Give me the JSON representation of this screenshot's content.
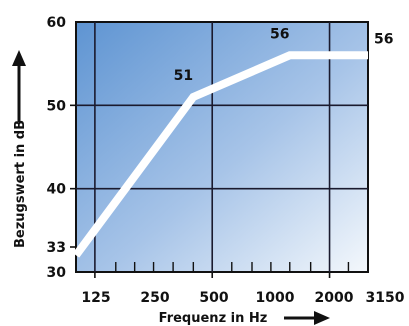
{
  "chart_data": {
    "type": "line",
    "title": "",
    "xlabel": "Frequenz in Hz",
    "ylabel": "Bezugswert in dB",
    "x_scale": "log",
    "ylim": [
      30,
      60
    ],
    "xlim": [
      100,
      3150
    ],
    "y_ticks": [
      30,
      33,
      40,
      50,
      60
    ],
    "x_ticks": [
      125,
      250,
      500,
      1000,
      2000,
      3150
    ],
    "grid": true,
    "series": [
      {
        "name": "",
        "x": [
          100,
          400,
          1250,
          3150
        ],
        "y": [
          32,
          51,
          56,
          56
        ]
      }
    ],
    "point_labels": [
      {
        "x": 400,
        "y": 51,
        "text": "51"
      },
      {
        "x": 1250,
        "y": 56,
        "text": "56"
      }
    ],
    "end_label": "56",
    "colors": {
      "background_top_left": "#5e94d2",
      "background_bottom_right": "#f4f8fc",
      "line": "#ffffff",
      "grid": "#1a1a2e"
    }
  }
}
